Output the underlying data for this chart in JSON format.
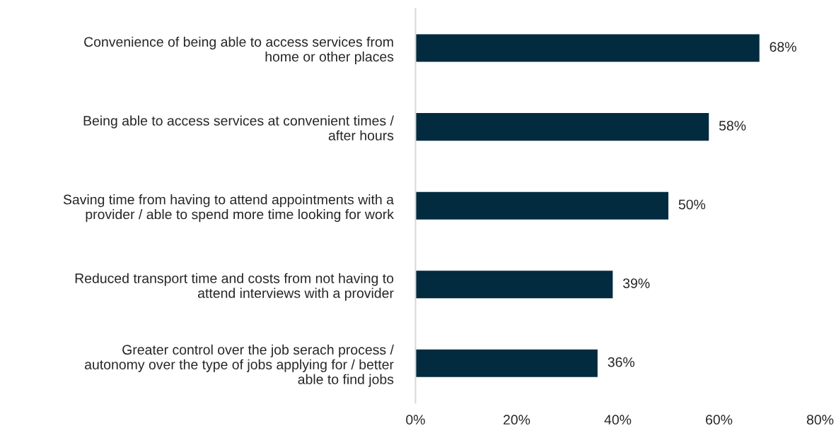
{
  "chart_data": {
    "type": "bar",
    "orientation": "horizontal",
    "categories": [
      "Convenience of being able to access services from\nhome or other places",
      "Being able to access services at convenient times /\nafter hours",
      "Saving time from having to attend appointments with a\nprovider / able to spend more time looking for work",
      "Reduced transport time and costs from not having to\nattend interviews with a provider",
      "Greater control over the job serach process /\nautonomy over the type of jobs applying for / better\nable to find jobs"
    ],
    "values": [
      68,
      58,
      50,
      39,
      36
    ],
    "value_labels": [
      "68%",
      "58%",
      "50%",
      "39%",
      "36%"
    ],
    "color": "#022b3f",
    "xlim": [
      0,
      80
    ],
    "xticks": [
      {
        "value": 0,
        "label": "0%"
      },
      {
        "value": 20,
        "label": "20%"
      },
      {
        "value": 40,
        "label": "40%"
      },
      {
        "value": 60,
        "label": "60%"
      },
      {
        "value": 80,
        "label": "80%"
      }
    ],
    "grid": false,
    "legend": false
  }
}
